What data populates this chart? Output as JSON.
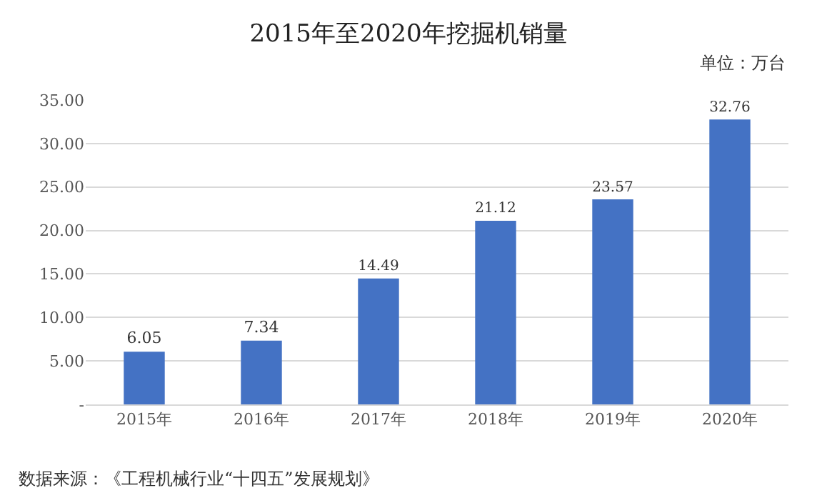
{
  "chart_data": {
    "type": "bar",
    "title": "2015年至2020年挖掘机销量",
    "categories": [
      "2015年",
      "2016年",
      "2017年",
      "2018年",
      "2019年",
      "2020年"
    ],
    "values": [
      6.05,
      7.34,
      14.49,
      21.12,
      23.57,
      32.76
    ],
    "color": "#4472c4",
    "ylim": [
      0,
      35
    ],
    "yticks": [
      {
        "value": 0,
        "label": "-"
      },
      {
        "value": 5,
        "label": "5.00"
      },
      {
        "value": 10,
        "label": "10.00"
      },
      {
        "value": 15,
        "label": "15.00"
      },
      {
        "value": 20,
        "label": "20.00"
      },
      {
        "value": 25,
        "label": "25.00"
      },
      {
        "value": 30,
        "label": "30.00"
      },
      {
        "value": 35,
        "label": "35.00"
      }
    ],
    "grid": "y",
    "data_labels": true,
    "annotations": [
      "单位：万台",
      "数据来源：《工程机械行业“十四五”发展规划》"
    ]
  }
}
